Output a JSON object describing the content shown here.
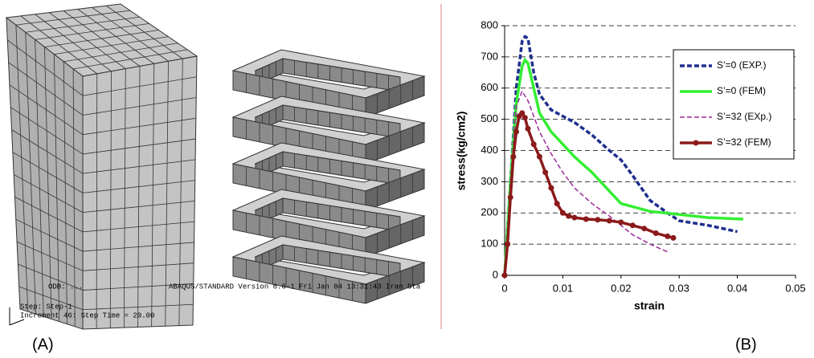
{
  "panel_labels": [
    "(A)",
    "(B)"
  ],
  "simulation_overlay": [
    "ODB: ...",
    "ABAQUS/STANDARD Version 6.6-1   Fri Jan 04 13:31:43 Iran Sta",
    "Step: Step-1",
    "Increment     46: Step Time =    20.00"
  ],
  "chart_data": {
    "type": "line",
    "xlabel": "strain",
    "ylabel": "stress(kg/cm2)",
    "xlim": [
      0,
      0.05
    ],
    "xticks": [
      0,
      0.01,
      0.02,
      0.03,
      0.04,
      0.05
    ],
    "ylim": [
      0,
      800
    ],
    "yticks": [
      0,
      100,
      200,
      300,
      400,
      500,
      600,
      700,
      800
    ],
    "grid": true,
    "legend": "upper right",
    "series": [
      {
        "name": "S’=0 (EXP.)",
        "color": "#1f2f8f",
        "style": "dashed",
        "markers": false,
        "x": [
          0,
          0.001,
          0.002,
          0.003,
          0.0035,
          0.004,
          0.005,
          0.006,
          0.008,
          0.01,
          0.012,
          0.015,
          0.018,
          0.02,
          0.022,
          0.025,
          0.028,
          0.03,
          0.035,
          0.04
        ],
        "values": [
          0,
          300,
          600,
          750,
          765,
          760,
          650,
          580,
          530,
          510,
          490,
          450,
          400,
          370,
          320,
          240,
          200,
          175,
          160,
          140
        ]
      },
      {
        "name": "S’=0 (FEM)",
        "color": "#33ee33",
        "style": "solid",
        "markers": false,
        "x": [
          0,
          0.001,
          0.002,
          0.003,
          0.0035,
          0.004,
          0.005,
          0.006,
          0.008,
          0.01,
          0.012,
          0.015,
          0.018,
          0.02,
          0.025,
          0.03,
          0.035,
          0.041
        ],
        "values": [
          0,
          300,
          550,
          670,
          690,
          680,
          600,
          520,
          460,
          420,
          380,
          330,
          270,
          230,
          205,
          195,
          185,
          180
        ]
      },
      {
        "name": "S’=32 (EXp.)",
        "color": "#9a2a9a",
        "style": "dashed",
        "markers": false,
        "x": [
          0,
          0.001,
          0.002,
          0.003,
          0.004,
          0.006,
          0.008,
          0.01,
          0.012,
          0.015,
          0.018,
          0.02,
          0.022,
          0.025,
          0.028
        ],
        "values": [
          0,
          300,
          540,
          590,
          560,
          460,
          390,
          330,
          280,
          230,
          190,
          160,
          130,
          100,
          75
        ]
      },
      {
        "name": "S’=32 (FEM)",
        "color": "#8b1a1a",
        "style": "solid",
        "markers": true,
        "x": [
          0,
          0.0005,
          0.001,
          0.0015,
          0.002,
          0.0025,
          0.003,
          0.0035,
          0.004,
          0.005,
          0.006,
          0.007,
          0.008,
          0.009,
          0.01,
          0.011,
          0.012,
          0.014,
          0.016,
          0.018,
          0.02,
          0.022,
          0.024,
          0.026,
          0.028,
          0.029
        ],
        "values": [
          0,
          100,
          250,
          380,
          460,
          510,
          520,
          505,
          470,
          420,
          380,
          330,
          280,
          230,
          200,
          190,
          185,
          180,
          178,
          175,
          170,
          160,
          150,
          135,
          125,
          120
        ]
      }
    ]
  }
}
